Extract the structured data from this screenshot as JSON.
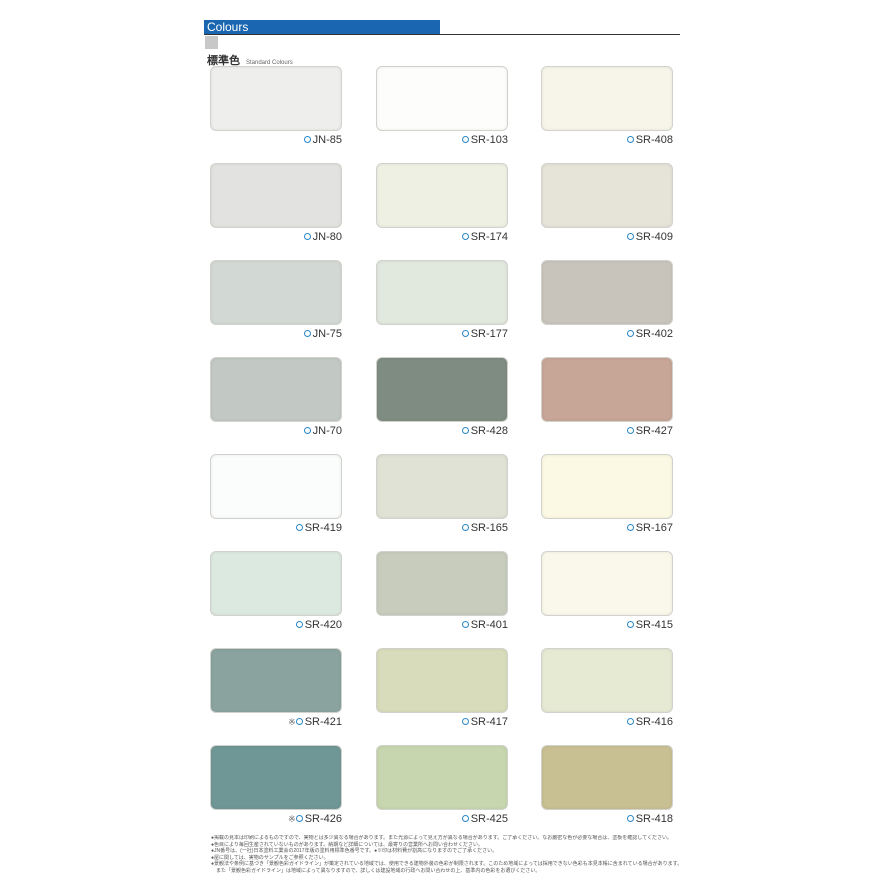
{
  "header": {
    "title": "Colours",
    "subtitle_jp": "標準色",
    "subtitle_en": "Standard Colours"
  },
  "swatches": [
    {
      "code": "JN-85",
      "color": "#eeefec",
      "mark": ""
    },
    {
      "code": "SR-103",
      "color": "#fdfdfc",
      "mark": ""
    },
    {
      "code": "SR-408",
      "color": "#f7f5ea",
      "mark": ""
    },
    {
      "code": "JN-80",
      "color": "#e2e3e0",
      "mark": ""
    },
    {
      "code": "SR-174",
      "color": "#eef0e3",
      "mark": ""
    },
    {
      "code": "SR-409",
      "color": "#e6e3d9",
      "mark": ""
    },
    {
      "code": "JN-75",
      "color": "#d2d8d3",
      "mark": ""
    },
    {
      "code": "SR-177",
      "color": "#e1e8de",
      "mark": ""
    },
    {
      "code": "SR-402",
      "color": "#c8c4bc",
      "mark": ""
    },
    {
      "code": "JN-70",
      "color": "#c2c8c3",
      "mark": ""
    },
    {
      "code": "SR-428",
      "color": "#7f8c82",
      "mark": ""
    },
    {
      "code": "SR-427",
      "color": "#c7a597",
      "mark": ""
    },
    {
      "code": "SR-419",
      "color": "#fbfcfc",
      "mark": ""
    },
    {
      "code": "SR-165",
      "color": "#e0e2d5",
      "mark": ""
    },
    {
      "code": "SR-167",
      "color": "#fbf9e3",
      "mark": ""
    },
    {
      "code": "SR-420",
      "color": "#dbe9e0",
      "mark": ""
    },
    {
      "code": "SR-401",
      "color": "#c7ccbd",
      "mark": ""
    },
    {
      "code": "SR-415",
      "color": "#f9f8ea",
      "mark": ""
    },
    {
      "code": "SR-421",
      "color": "#8ba39f",
      "mark": "※"
    },
    {
      "code": "SR-417",
      "color": "#d9dcba",
      "mark": ""
    },
    {
      "code": "SR-416",
      "color": "#e6ead3",
      "mark": ""
    },
    {
      "code": "SR-426",
      "color": "#6f9796",
      "mark": "※"
    },
    {
      "code": "SR-425",
      "color": "#c7d6ae",
      "mark": ""
    },
    {
      "code": "SR-418",
      "color": "#c8bf93",
      "mark": ""
    }
  ],
  "notes": [
    "●掲載の見本は印刷によるものですので、実物とは多少異なる場合があります。また光源によって見え方が異なる場合があります。ご了承ください。なお厳密な色が必要な場合は、塗板を確認してください。",
    "●色目により毎回生産されていないものがあります。納期など詳細については、最寄りの営業所へお問い合わせください。",
    "●JN番号は、(一社)日本塗料工業会の2017年版の塗料用標準色番号です。●※印は材料費が割高になりますのでご了承ください。",
    "●屋に関しては、実物のサンプルをご参照ください。",
    "●景観法や条例に基づき「景観色彩ガイドライン」が策定されている地域では、使用できる建物外装の色彩が制限されます。このため地域によっては採用できない色彩も本見本帳に含まれている場合があります。",
    "　また「景観色彩ガイドライン」は地域によって異なりますので、詳しくは建設地域の行政へお問い合わせの上、基準内の色彩をお選びください。"
  ],
  "colors": {
    "header_bar": "#1a66b0",
    "label_dot": "#2a87c8"
  }
}
